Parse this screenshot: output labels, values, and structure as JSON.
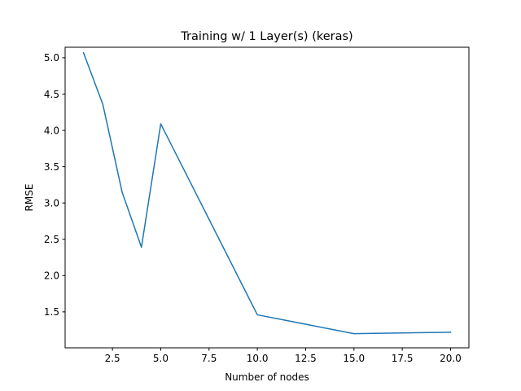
{
  "chart_data": {
    "type": "line",
    "title": "Training w/ 1 Layer(s) (keras)",
    "xlabel": "Number of nodes",
    "ylabel": "RMSE",
    "xlim": [
      0.05,
      20.95
    ],
    "ylim": [
      1.005,
      5.145
    ],
    "grid": false,
    "x_ticks": [
      2.5,
      5.0,
      7.5,
      10.0,
      12.5,
      15.0,
      17.5,
      20.0
    ],
    "x_tick_labels": [
      "2.5",
      "5.0",
      "7.5",
      "10.0",
      "12.5",
      "15.0",
      "17.5",
      "20.0"
    ],
    "y_ticks": [
      1.5,
      2.0,
      2.5,
      3.0,
      3.5,
      4.0,
      4.5,
      5.0
    ],
    "y_tick_labels": [
      "1.5",
      "2.0",
      "2.5",
      "3.0",
      "3.5",
      "4.0",
      "4.5",
      "5.0"
    ],
    "series": [
      {
        "color": "#1f77b4",
        "x": [
          1,
          2,
          3,
          4,
          5,
          10,
          15,
          20
        ],
        "y": [
          5.07,
          4.36,
          3.15,
          2.39,
          4.09,
          1.46,
          1.2,
          1.22
        ]
      }
    ]
  }
}
